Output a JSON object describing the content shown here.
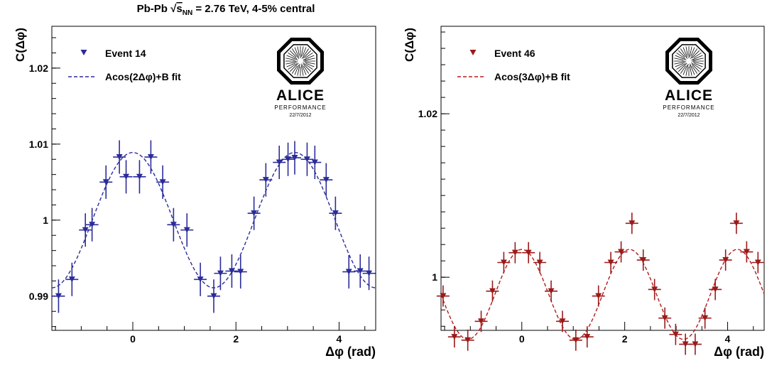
{
  "header": {
    "title_prefix": "Pb-Pb ",
    "sqrt": "√",
    "s": "s",
    "nn": "NN",
    "title_suffix": " = 2.76 TeV, 4-5% central"
  },
  "logo": {
    "name": "ALICE",
    "subtitle": "PERFORMANCE",
    "date": "22/7/2012"
  },
  "chart_data": [
    {
      "type": "scatter",
      "ylabel": "C(Δφ)",
      "xlabel": "Δφ (rad)",
      "xlim": [
        -1.57,
        4.71
      ],
      "ylim": [
        0.9855,
        1.0255
      ],
      "x_ticks": [
        0,
        2,
        4
      ],
      "y_ticks": [
        0.99,
        1,
        1.01,
        1.02
      ],
      "y_tick_labels": [
        "0.99",
        "1",
        "1.01",
        "1.02"
      ],
      "marker_color": "#2b2c9a",
      "fit_color": "#2b2c9a",
      "legend": {
        "position": "top-left",
        "entries": [
          "Event 14",
          "Acos(2Δφ)+B fit"
        ]
      },
      "series": [
        {
          "name": "Event 14",
          "x": [
            -1.44,
            -1.18,
            -0.92,
            -0.79,
            -0.52,
            -0.26,
            -0.13,
            0.13,
            0.35,
            0.58,
            0.79,
            1.05,
            1.31,
            1.57,
            1.7,
            1.92,
            2.09,
            2.35,
            2.58,
            2.84,
            3.01,
            3.14,
            3.38,
            3.53,
            3.75,
            3.93,
            4.19,
            4.41,
            4.58
          ],
          "y": [
            0.99,
            0.9922,
            0.9987,
            0.9994,
            1.005,
            1.0083,
            1.0057,
            1.0057,
            1.0083,
            1.005,
            0.9994,
            0.9987,
            0.9922,
            0.99,
            0.993,
            0.9933,
            0.9932,
            1.0009,
            1.0053,
            1.0076,
            1.008,
            1.0082,
            1.008,
            1.0076,
            1.0053,
            1.0009,
            0.9932,
            0.9933,
            0.993
          ],
          "y_err": [
            0.0022,
            0.0022,
            0.0022,
            0.0022,
            0.0022,
            0.0022,
            0.0022,
            0.0022,
            0.0022,
            0.0022,
            0.0022,
            0.0022,
            0.0022,
            0.0022,
            0.0022,
            0.0022,
            0.0022,
            0.0022,
            0.0022,
            0.0022,
            0.0022,
            0.0022,
            0.0022,
            0.0022,
            0.0022,
            0.0022,
            0.0022,
            0.0022,
            0.0022
          ]
        },
        {
          "name": "Acos(2Δφ)+B fit",
          "function": "A*cos(2*x)+B",
          "A": 0.0089,
          "B": 1.0
        }
      ]
    },
    {
      "type": "scatter",
      "ylabel": "C(Δφ)",
      "xlabel": "Δφ (rad)",
      "xlim": [
        -1.57,
        4.71
      ],
      "ylim": [
        0.9935,
        1.0307
      ],
      "x_ticks": [
        0,
        2,
        4
      ],
      "y_ticks": [
        1,
        1.02
      ],
      "y_tick_labels": [
        "1",
        "1.02"
      ],
      "marker_color": "#9b1a1a",
      "fit_color": "#b31c1c",
      "legend": {
        "position": "top-left",
        "entries": [
          "Event 46",
          "Acos(3Δφ)+B fit"
        ]
      },
      "series": [
        {
          "name": "Event 46",
          "x": [
            -1.53,
            -1.31,
            -1.05,
            -0.79,
            -0.57,
            -0.35,
            -0.13,
            0.13,
            0.35,
            0.57,
            0.79,
            1.05,
            1.27,
            1.49,
            1.73,
            1.93,
            2.14,
            2.36,
            2.58,
            2.78,
            2.99,
            3.18,
            3.37,
            3.56,
            3.76,
            3.96,
            4.17,
            4.37,
            4.59
          ],
          "y": [
            0.9977,
            0.9927,
            0.9923,
            0.9946,
            0.9983,
            1.0018,
            1.003,
            1.003,
            1.0018,
            0.9983,
            0.9946,
            0.9923,
            0.9927,
            0.9977,
            1.0018,
            1.0031,
            1.0066,
            1.0021,
            0.9985,
            0.995,
            0.993,
            0.9918,
            0.9918,
            0.995,
            0.9985,
            1.0021,
            1.0066,
            1.0031,
            1.0018
          ],
          "y_err": [
            0.0013,
            0.0013,
            0.0013,
            0.0013,
            0.0013,
            0.0013,
            0.0013,
            0.0013,
            0.0013,
            0.0013,
            0.0013,
            0.0013,
            0.0013,
            0.0013,
            0.0013,
            0.0013,
            0.0013,
            0.0013,
            0.0013,
            0.0013,
            0.0013,
            0.0013,
            0.0013,
            0.0013,
            0.0013,
            0.0013,
            0.0013,
            0.0013,
            0.0013
          ]
        },
        {
          "name": "Acos(3Δφ)+B fit",
          "function": "A*cos(3*x)+B",
          "A": 0.0055,
          "B": 0.9979
        }
      ]
    }
  ]
}
